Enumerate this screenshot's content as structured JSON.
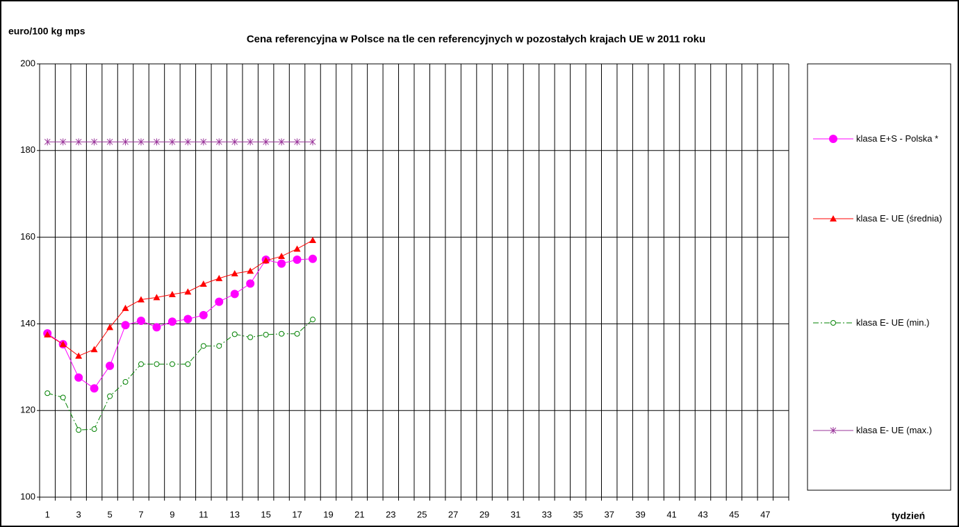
{
  "chart_data": {
    "type": "line",
    "title": "Cena referencyjna w Polsce na tle cen referencyjnych w pozostałych krajach UE w 2011 roku",
    "y_label": "euro/100 kg mps",
    "x_label": "tydzień",
    "categories": [
      "1",
      null,
      "3",
      null,
      "5",
      null,
      "7",
      null,
      "9",
      null,
      "11",
      null,
      "13",
      null,
      "15",
      null,
      "17",
      null,
      "19",
      null,
      "21",
      null,
      "23",
      null,
      "25",
      null,
      "27",
      null,
      "29",
      null,
      "31",
      null,
      "33",
      null,
      "35",
      null,
      "37",
      null,
      "39",
      null,
      "41",
      null,
      "43",
      null,
      "45",
      null,
      "47",
      null
    ],
    "ylim": [
      100,
      200
    ],
    "yticks": [
      100,
      120,
      140,
      160,
      180,
      200
    ],
    "grid": true,
    "series": [
      {
        "name": "klasa E+S - Polska *",
        "color": "#ff00ff",
        "marker": "circle",
        "line_style": "solid",
        "values": [
          137.8,
          135.3,
          127.6,
          125.1,
          130.3,
          139.7,
          140.7,
          139.2,
          140.5,
          141.1,
          142.0,
          145.1,
          146.9,
          149.3,
          154.8,
          153.9,
          154.8,
          155.0,
          null,
          null,
          null,
          null,
          null,
          null,
          null,
          null,
          null,
          null,
          null,
          null,
          null,
          null,
          null,
          null,
          null,
          null,
          null,
          null,
          null,
          null,
          null,
          null,
          null,
          null,
          null,
          null,
          null,
          null
        ]
      },
      {
        "name": "klasa E- UE (średnia)",
        "color": "#ff0000",
        "marker": "triangle",
        "line_style": "solid",
        "values": [
          137.5,
          135.3,
          132.6,
          134.1,
          139.2,
          143.6,
          145.6,
          146.1,
          146.8,
          147.4,
          149.2,
          150.5,
          151.6,
          152.2,
          154.6,
          155.6,
          157.3,
          159.3,
          null,
          null,
          null,
          null,
          null,
          null,
          null,
          null,
          null,
          null,
          null,
          null,
          null,
          null,
          null,
          null,
          null,
          null,
          null,
          null,
          null,
          null,
          null,
          null,
          null,
          null,
          null,
          null,
          null,
          null
        ]
      },
      {
        "name": "klasa E- UE (min.)",
        "color": "#008000",
        "marker": "open-circle",
        "line_style": "dash-dot",
        "values": [
          124.0,
          123.0,
          115.5,
          115.7,
          123.3,
          126.6,
          130.7,
          130.7,
          130.7,
          130.7,
          134.9,
          134.9,
          137.6,
          136.9,
          137.5,
          137.7,
          137.7,
          141.0,
          null,
          null,
          null,
          null,
          null,
          null,
          null,
          null,
          null,
          null,
          null,
          null,
          null,
          null,
          null,
          null,
          null,
          null,
          null,
          null,
          null,
          null,
          null,
          null,
          null,
          null,
          null,
          null,
          null,
          null
        ]
      },
      {
        "name": "klasa E- UE (max.)",
        "color": "#993399",
        "marker": "star",
        "line_style": "solid",
        "values": [
          182,
          182,
          182,
          182,
          182,
          182,
          182,
          182,
          182,
          182,
          182,
          182,
          182,
          182,
          182,
          182,
          182,
          182,
          null,
          null,
          null,
          null,
          null,
          null,
          null,
          null,
          null,
          null,
          null,
          null,
          null,
          null,
          null,
          null,
          null,
          null,
          null,
          null,
          null,
          null,
          null,
          null,
          null,
          null,
          null,
          null,
          null,
          null
        ]
      }
    ]
  }
}
